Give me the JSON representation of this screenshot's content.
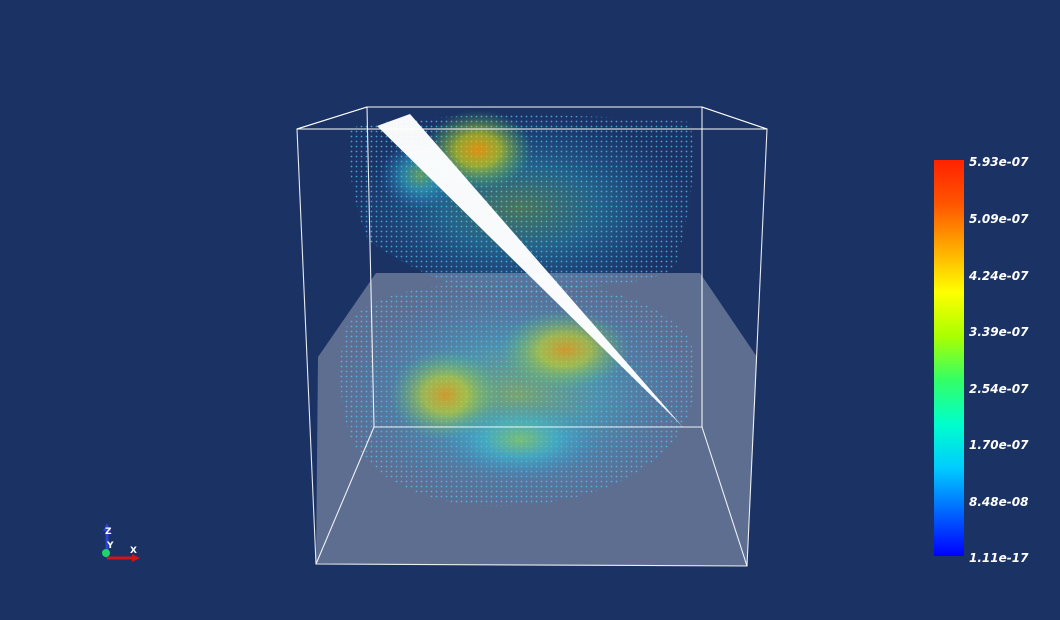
{
  "colors": {
    "background": "#1b3264",
    "bounding_box": "#ffffff",
    "ground_plane": "#b9c0cf",
    "slice_plane": "#ffffff",
    "axis_x": "#d01515",
    "axis_y": "#1fd36a",
    "axis_z": "#2a45d6"
  },
  "colormap": {
    "name": "jet",
    "stops": [
      "#0000ff",
      "#0066ff",
      "#00ccff",
      "#00ffcc",
      "#33ff66",
      "#aaff00",
      "#ffff00",
      "#ffaa00",
      "#ff5500",
      "#ff2200"
    ]
  },
  "scalar_bar": {
    "labels": [
      "5.93e-07",
      "5.09e-07",
      "4.24e-07",
      "3.39e-07",
      "2.54e-07",
      "1.70e-07",
      "8.48e-08",
      "1.11e-17"
    ],
    "max": 5.93e-07,
    "min": 1.11e-17
  },
  "axes": {
    "x_label": "X",
    "y_label": "Y",
    "z_label": "Z"
  }
}
